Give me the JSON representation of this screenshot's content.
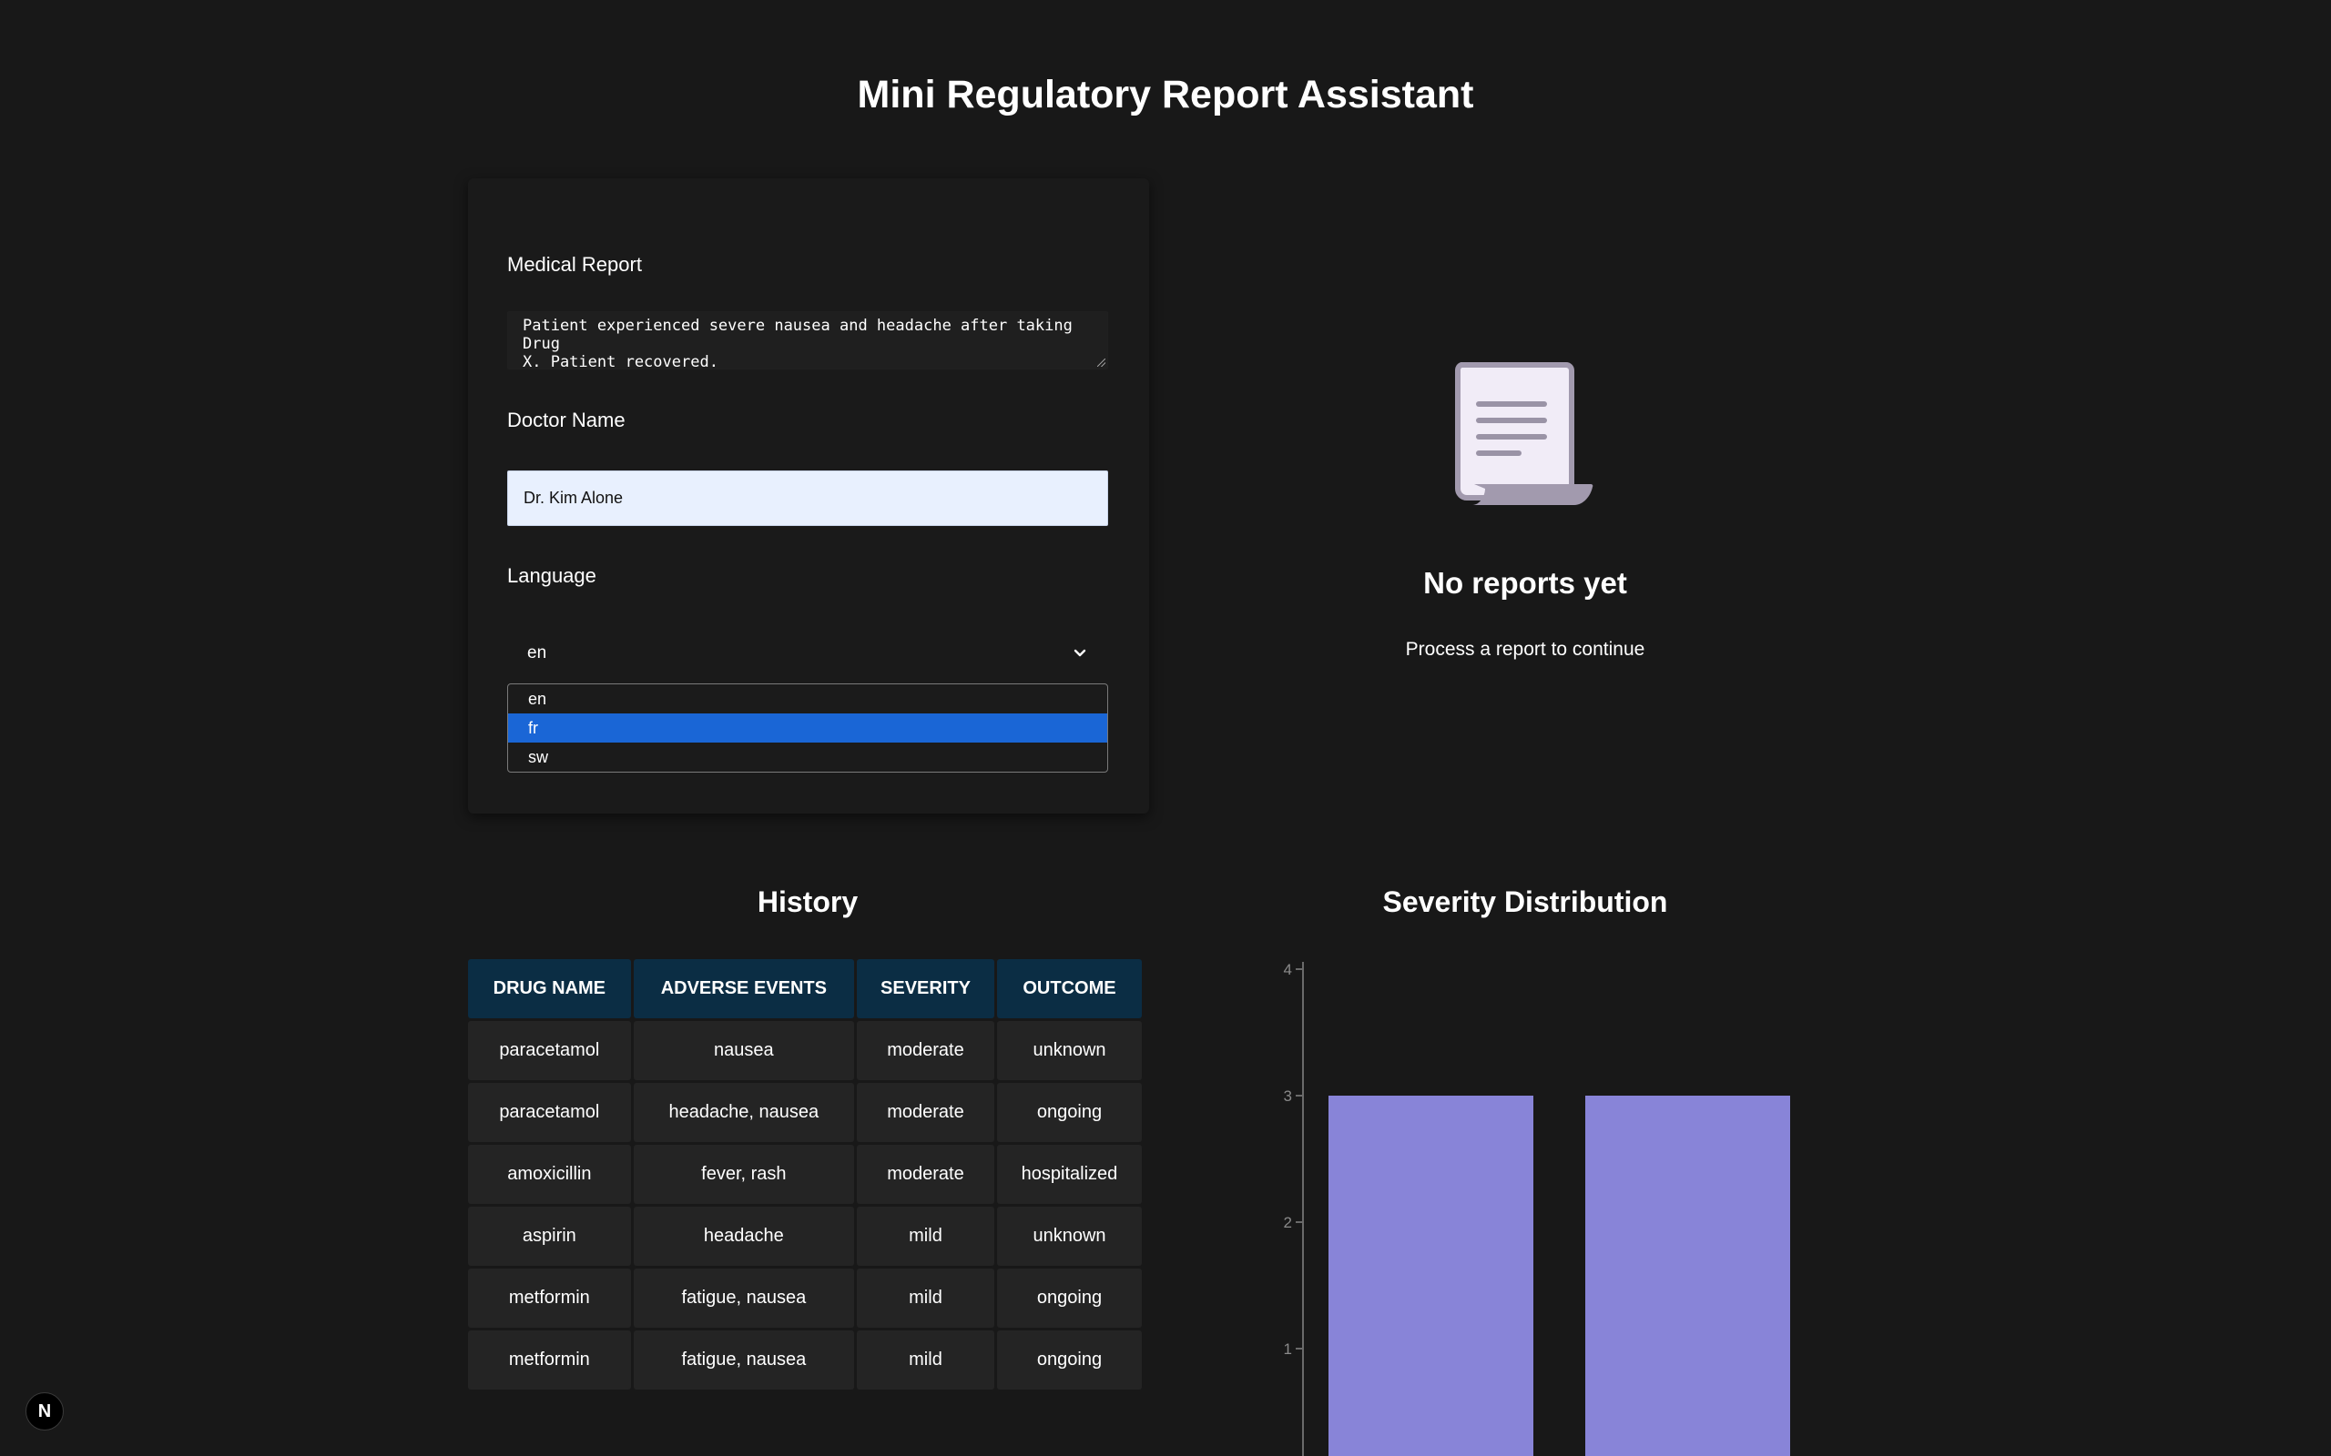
{
  "app": {
    "title": "Mini Regulatory Report Assistant"
  },
  "form": {
    "report_label": "Medical Report",
    "report_value": "Patient experienced severe nausea and headache after taking Drug\nX. Patient recovered.",
    "doctor_label": "Doctor Name",
    "doctor_value": "Dr. Kim Alone",
    "language_label": "Language",
    "language_value": "en",
    "language_options": [
      "en",
      "fr",
      "sw"
    ],
    "language_highlighted": "fr"
  },
  "empty_state": {
    "icon": "document-scroll-icon",
    "title": "No reports yet",
    "subtitle": "Process a report to continue"
  },
  "history": {
    "title": "History",
    "columns": [
      "Drug Name",
      "Adverse Events",
      "Severity",
      "Outcome"
    ],
    "rows": [
      [
        "paracetamol",
        "nausea",
        "moderate",
        "unknown"
      ],
      [
        "paracetamol",
        "headache, nausea",
        "moderate",
        "ongoing"
      ],
      [
        "amoxicillin",
        "fever, rash",
        "moderate",
        "hospitalized"
      ],
      [
        "aspirin",
        "headache",
        "mild",
        "unknown"
      ],
      [
        "metformin",
        "fatigue, nausea",
        "mild",
        "ongoing"
      ],
      [
        "metformin",
        "fatigue, nausea",
        "mild",
        "ongoing"
      ]
    ]
  },
  "chart": {
    "title": "Severity Distribution"
  },
  "chart_data": {
    "type": "bar",
    "title": "Severity Distribution",
    "categories": [
      "",
      ""
    ],
    "values": [
      3,
      3
    ],
    "ylim": [
      0,
      4
    ],
    "yticks": [
      1,
      2,
      3,
      4
    ],
    "bar_color": "#8884d8",
    "grid": false
  },
  "badge": {
    "label": "N",
    "icon": "nextjs-icon"
  },
  "colors": {
    "background": "#181818",
    "header_cell": "#0b2d44",
    "body_cell": "#242424",
    "selected_option": "#1a66d6",
    "input_fill": "#e8f0fe"
  }
}
